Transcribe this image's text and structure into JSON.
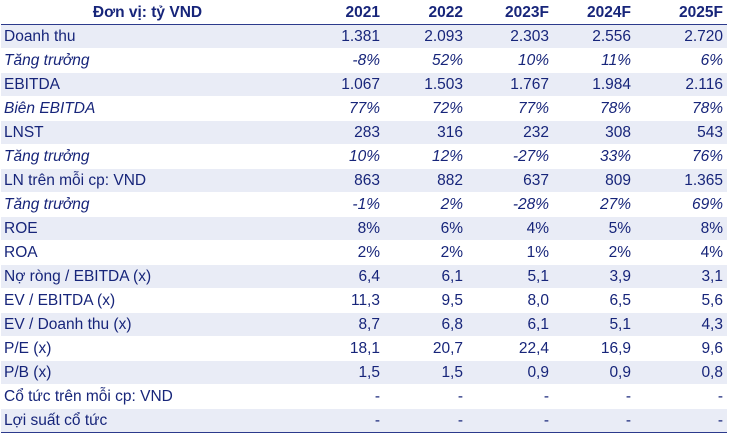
{
  "table": {
    "unit_label": "Đơn vị: tỷ VND",
    "columns": [
      "2021",
      "2022",
      "2023F",
      "2024F",
      "2025F"
    ],
    "rows": [
      {
        "label": "Doanh thu",
        "italic": false,
        "values": [
          "1.381",
          "2.093",
          "2.303",
          "2.556",
          "2.720"
        ]
      },
      {
        "label": "Tăng trưởng",
        "italic": true,
        "values": [
          "-8%",
          "52%",
          "10%",
          "11%",
          "6%"
        ]
      },
      {
        "label": "EBITDA",
        "italic": false,
        "values": [
          "1.067",
          "1.503",
          "1.767",
          "1.984",
          "2.116"
        ]
      },
      {
        "label": "Biên EBITDA",
        "italic": true,
        "values": [
          "77%",
          "72%",
          "77%",
          "78%",
          "78%"
        ]
      },
      {
        "label": "LNST",
        "italic": false,
        "values": [
          "283",
          "316",
          "232",
          "308",
          "543"
        ]
      },
      {
        "label": "Tăng trưởng",
        "italic": true,
        "values": [
          "10%",
          "12%",
          "-27%",
          "33%",
          "76%"
        ]
      },
      {
        "label": "LN trên mỗi cp: VND",
        "italic": false,
        "values": [
          "863",
          "882",
          "637",
          "809",
          "1.365"
        ]
      },
      {
        "label": "Tăng trưởng",
        "italic": true,
        "values": [
          "-1%",
          "2%",
          "-28%",
          "27%",
          "69%"
        ]
      },
      {
        "label": "ROE",
        "italic": false,
        "values": [
          "8%",
          "6%",
          "4%",
          "5%",
          "8%"
        ]
      },
      {
        "label": "ROA",
        "italic": false,
        "values": [
          "2%",
          "2%",
          "1%",
          "2%",
          "4%"
        ]
      },
      {
        "label": "Nợ ròng / EBITDA (x)",
        "italic": false,
        "values": [
          "6,4",
          "6,1",
          "5,1",
          "3,9",
          "3,1"
        ]
      },
      {
        "label": "EV / EBITDA (x)",
        "italic": false,
        "values": [
          "11,3",
          "9,5",
          "8,0",
          "6,5",
          "5,6"
        ]
      },
      {
        "label": "EV / Doanh thu (x)",
        "italic": false,
        "values": [
          "8,7",
          "6,8",
          "6,1",
          "5,1",
          "4,3"
        ]
      },
      {
        "label": "P/E (x)",
        "italic": false,
        "values": [
          "18,1",
          "20,7",
          "22,4",
          "16,9",
          "9,6"
        ]
      },
      {
        "label": "P/B (x)",
        "italic": false,
        "values": [
          "1,5",
          "1,5",
          "0,9",
          "0,9",
          "0,8"
        ]
      },
      {
        "label": "Cổ tức trên mỗi cp: VND",
        "italic": false,
        "values": [
          "-",
          "-",
          "-",
          "-",
          "-"
        ]
      },
      {
        "label": "Lợi suất cổ tức",
        "italic": false,
        "values": [
          "-",
          "-",
          "-",
          "-",
          "-"
        ]
      }
    ]
  }
}
